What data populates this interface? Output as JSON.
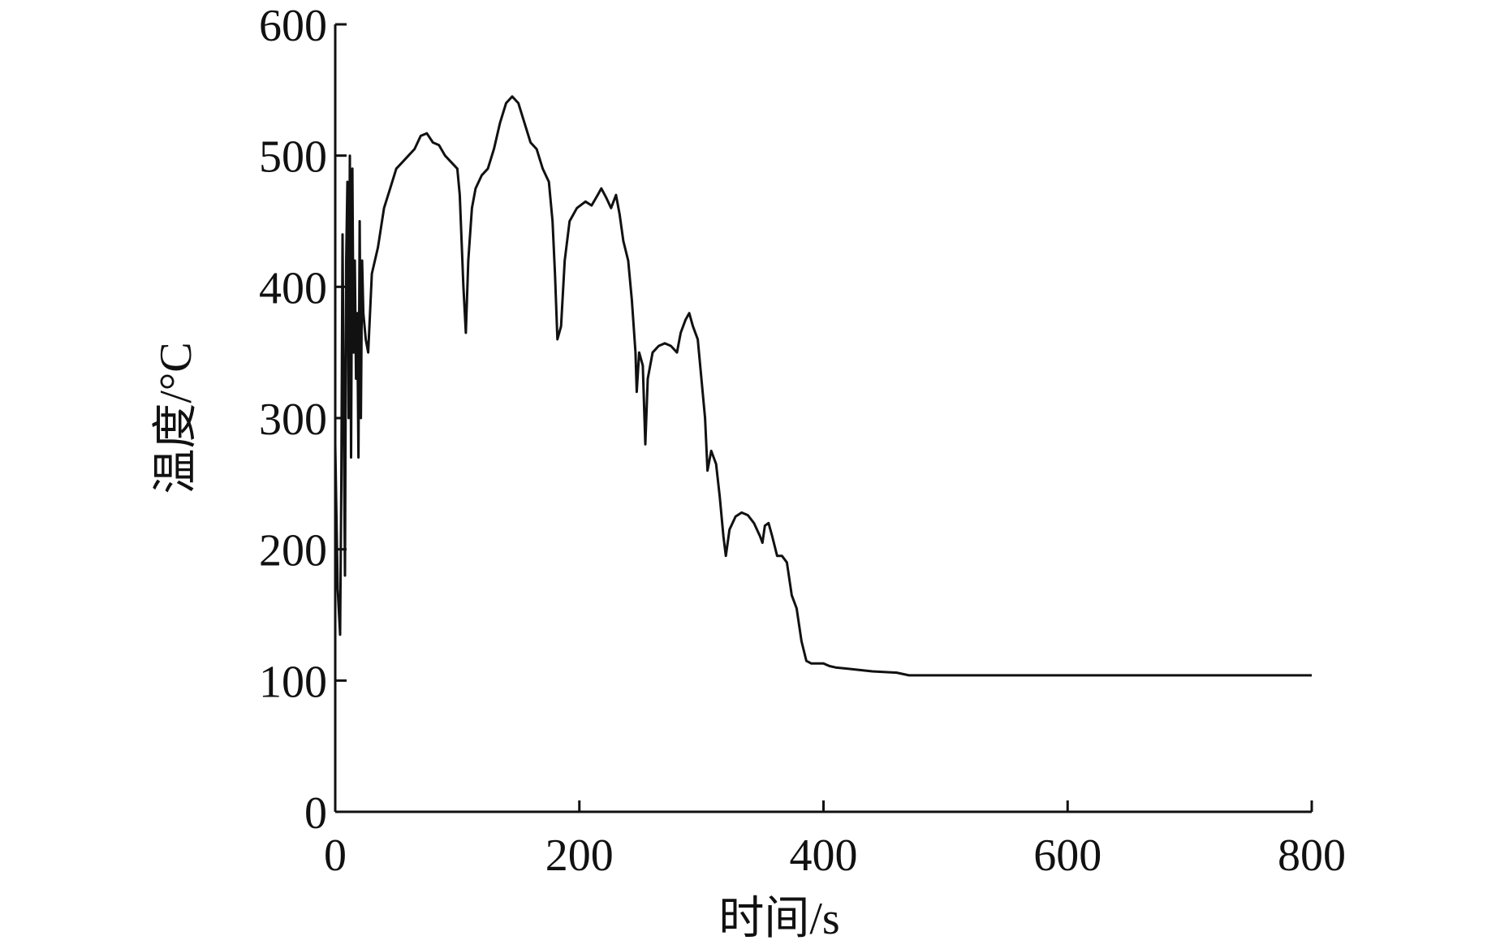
{
  "chart_data": {
    "type": "line",
    "x_label": "时间/s",
    "y_label": "温度/°C",
    "xlim": [
      0,
      800
    ],
    "ylim": [
      0,
      600
    ],
    "xticks": [
      0,
      200,
      400,
      600,
      800
    ],
    "yticks": [
      0,
      100,
      200,
      300,
      400,
      500,
      600
    ],
    "grid": false,
    "series": [
      {
        "color": "#111111",
        "x": [
          0,
          2,
          4,
          5,
          6,
          7,
          8,
          9,
          10,
          11,
          12,
          13,
          14,
          15,
          16,
          17,
          18,
          19,
          20,
          21,
          22,
          23,
          25,
          27,
          30,
          35,
          40,
          45,
          50,
          55,
          60,
          65,
          70,
          75,
          80,
          85,
          90,
          95,
          100,
          102,
          105,
          107,
          109,
          112,
          115,
          120,
          125,
          130,
          135,
          140,
          145,
          150,
          155,
          160,
          165,
          170,
          175,
          178,
          180,
          182,
          185,
          188,
          192,
          198,
          205,
          210,
          215,
          218,
          222,
          226,
          230,
          233,
          236,
          240,
          243,
          246,
          247,
          249,
          252,
          254,
          256,
          260,
          265,
          270,
          275,
          280,
          283,
          287,
          290,
          293,
          297,
          300,
          303,
          305,
          308,
          312,
          315,
          318,
          320,
          323,
          328,
          333,
          338,
          343,
          348,
          350,
          352,
          355,
          358,
          362,
          366,
          370,
          374,
          378,
          382,
          386,
          390,
          400,
          405,
          410,
          420,
          430,
          440,
          460,
          470,
          500,
          800
        ],
        "values": [
          280,
          170,
          135,
          250,
          440,
          300,
          180,
          420,
          480,
          300,
          500,
          270,
          490,
          350,
          420,
          330,
          380,
          270,
          450,
          300,
          420,
          380,
          360,
          350,
          410,
          430,
          460,
          475,
          490,
          495,
          500,
          505,
          515,
          517,
          510,
          508,
          500,
          495,
          490,
          470,
          400,
          365,
          420,
          460,
          475,
          485,
          490,
          505,
          525,
          540,
          545,
          540,
          525,
          510,
          505,
          490,
          480,
          450,
          410,
          360,
          370,
          420,
          450,
          460,
          465,
          462,
          470,
          475,
          468,
          460,
          470,
          455,
          435,
          420,
          390,
          350,
          320,
          350,
          340,
          280,
          330,
          350,
          355,
          357,
          355,
          350,
          365,
          375,
          380,
          370,
          360,
          330,
          300,
          260,
          275,
          265,
          240,
          210,
          195,
          215,
          225,
          228,
          226,
          220,
          210,
          205,
          218,
          220,
          210,
          195,
          195,
          190,
          165,
          155,
          130,
          115,
          113,
          113,
          111,
          110,
          109,
          108,
          107,
          106,
          104,
          104,
          104
        ]
      }
    ]
  }
}
